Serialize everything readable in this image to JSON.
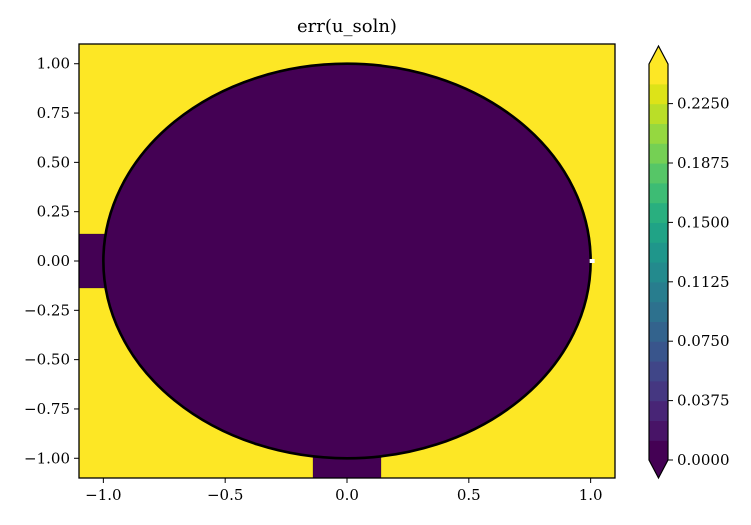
{
  "chart_data": {
    "type": "heatmap",
    "title": "err(u_soln)",
    "xlabel": "",
    "ylabel": "",
    "xlim": [
      -1.1,
      1.1
    ],
    "ylim": [
      -1.1,
      1.1
    ],
    "xticks": [
      -1.0,
      -0.5,
      0.0,
      0.5,
      1.0
    ],
    "xtick_labels": [
      "−1.0",
      "−0.5",
      "0.0",
      "0.5",
      "1.0"
    ],
    "yticks": [
      1.0,
      0.75,
      0.5,
      0.25,
      0.0,
      -0.25,
      -0.5,
      -0.75,
      -1.0
    ],
    "ytick_labels": [
      "1.00",
      "0.75",
      "0.50",
      "0.25",
      "0.00",
      "−0.25",
      "−0.50",
      "−0.75",
      "−1.00"
    ],
    "grid": false,
    "regions": {
      "inside_unit_circle_value": 0.0,
      "outside_unit_circle_value": 0.25,
      "circle_radius": 1.0,
      "circle_center": [
        0.0,
        0.0
      ]
    },
    "colorbar": {
      "min": 0.0,
      "max": 0.25,
      "levels": 20,
      "extend": "both",
      "ticks": [
        0.0,
        0.0375,
        0.075,
        0.1125,
        0.15,
        0.1875,
        0.225
      ],
      "tick_labels": [
        "0.0000",
        "0.0375",
        "0.0750",
        "0.1125",
        "0.1500",
        "0.1875",
        "0.2250"
      ],
      "colormap": "viridis",
      "colors": [
        "#440154",
        "#481467",
        "#482576",
        "#453781",
        "#404688",
        "#39558c",
        "#33638d",
        "#2d718e",
        "#287d8e",
        "#238a8d",
        "#1f968b",
        "#20a386",
        "#29af7f",
        "#3dbc74",
        "#56c667",
        "#75d054",
        "#95d840",
        "#bade28",
        "#dde318",
        "#fde725"
      ]
    }
  }
}
